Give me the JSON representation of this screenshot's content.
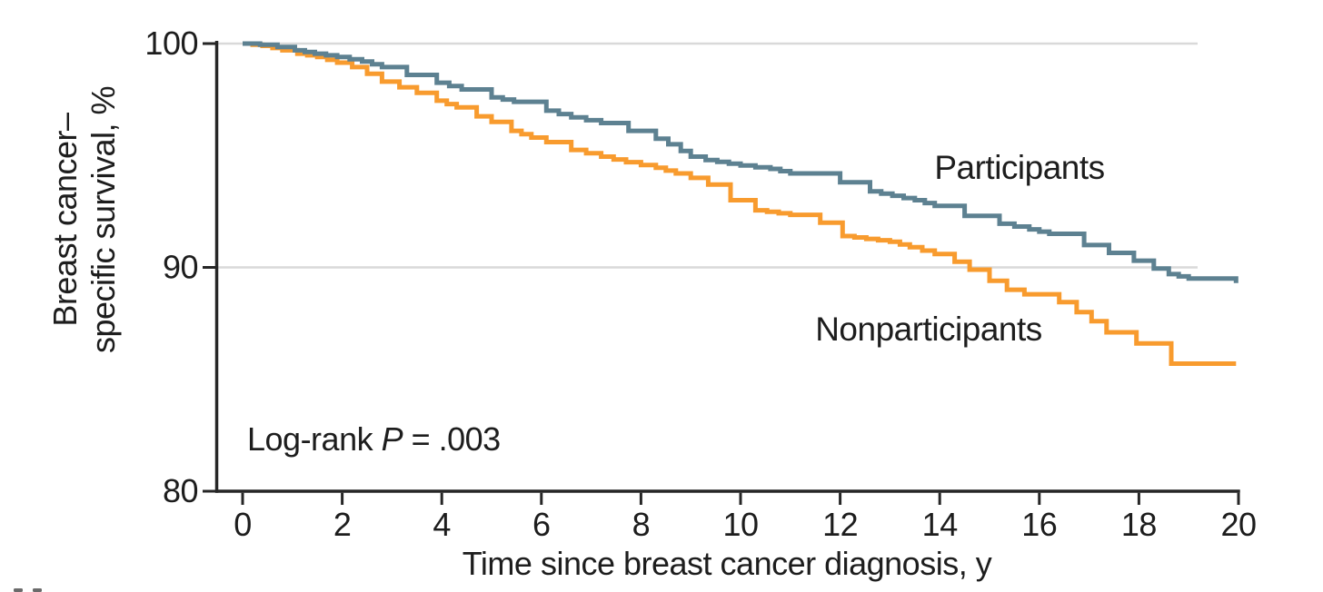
{
  "figure": {
    "background": "#ffffff",
    "y_axis": {
      "label_line1": "Breast cancer–",
      "label_line2": "specific survival, %",
      "ticks": [
        100,
        90,
        80
      ],
      "min": 80,
      "max": 100
    },
    "x_axis": {
      "label": "Time since breast cancer diagnosis, y",
      "ticks": [
        0,
        2,
        4,
        6,
        8,
        10,
        12,
        14,
        16,
        18,
        20
      ],
      "min": 0,
      "max": 20
    },
    "annotation": {
      "prefix": "Log-rank ",
      "stat_symbol": "P",
      "value_text": " = .003"
    }
  },
  "colors": {
    "participants": "#5d8191",
    "nonparticipants": "#f89b2e",
    "grid": "#d9d9d9",
    "axis": "#262626",
    "text": "#1d1d1d"
  },
  "chart_data": {
    "type": "line",
    "subtype": "kaplan-meier-step",
    "title": "",
    "xlabel": "Time since breast cancer diagnosis, y",
    "ylabel": "Breast cancer–specific survival, %",
    "xlim": [
      0,
      20
    ],
    "ylim": [
      80,
      100
    ],
    "x_ticks": [
      0,
      2,
      4,
      6,
      8,
      10,
      12,
      14,
      16,
      18,
      20
    ],
    "y_ticks": [
      100,
      90,
      80
    ],
    "grid": "horizontal gridlines at y=90 and y=100",
    "legend_position": "inline curve labels",
    "p_value_label": "Log-rank P = .003",
    "series": [
      {
        "name": "Nonparticipants",
        "color": "#f89b2e",
        "points": [
          [
            0,
            100
          ],
          [
            0.4,
            99.9
          ],
          [
            0.8,
            99.7
          ],
          [
            1.1,
            99.55
          ],
          [
            1.5,
            99.4
          ],
          [
            1.9,
            99.15
          ],
          [
            2.2,
            98.95
          ],
          [
            2.5,
            98.65
          ],
          [
            2.8,
            98.3
          ],
          [
            3.15,
            98.05
          ],
          [
            3.5,
            97.8
          ],
          [
            3.9,
            97.45
          ],
          [
            4.3,
            97.15
          ],
          [
            4.7,
            96.75
          ],
          [
            5.0,
            96.5
          ],
          [
            5.4,
            96.1
          ],
          [
            5.8,
            95.8
          ],
          [
            6.1,
            95.6
          ],
          [
            6.6,
            95.25
          ],
          [
            7.2,
            94.95
          ],
          [
            7.7,
            94.7
          ],
          [
            8.3,
            94.45
          ],
          [
            8.7,
            94.2
          ],
          [
            9.0,
            94.0
          ],
          [
            9.35,
            93.7
          ],
          [
            9.8,
            93.0
          ],
          [
            10.3,
            92.55
          ],
          [
            11.0,
            92.35
          ],
          [
            11.6,
            92.0
          ],
          [
            12.05,
            91.4
          ],
          [
            13.0,
            91.15
          ],
          [
            13.4,
            90.9
          ],
          [
            13.9,
            90.6
          ],
          [
            14.3,
            90.25
          ],
          [
            14.6,
            89.9
          ],
          [
            15.0,
            89.4
          ],
          [
            15.35,
            89.0
          ],
          [
            15.7,
            88.8
          ],
          [
            16.4,
            88.45
          ],
          [
            16.75,
            88.0
          ],
          [
            17.05,
            87.6
          ],
          [
            17.35,
            87.1
          ],
          [
            17.95,
            86.6
          ],
          [
            18.65,
            85.7
          ],
          [
            19.95,
            85.7
          ]
        ]
      },
      {
        "name": "Participants",
        "color": "#5d8191",
        "points": [
          [
            0,
            100
          ],
          [
            0.35,
            99.95
          ],
          [
            0.7,
            99.85
          ],
          [
            1.05,
            99.7
          ],
          [
            1.45,
            99.55
          ],
          [
            1.9,
            99.4
          ],
          [
            2.4,
            99.2
          ],
          [
            2.8,
            98.95
          ],
          [
            3.3,
            98.6
          ],
          [
            3.9,
            98.25
          ],
          [
            4.4,
            97.95
          ],
          [
            5.0,
            97.6
          ],
          [
            5.45,
            97.4
          ],
          [
            6.1,
            97.0
          ],
          [
            6.6,
            96.7
          ],
          [
            7.2,
            96.45
          ],
          [
            7.75,
            96.1
          ],
          [
            8.3,
            95.75
          ],
          [
            8.55,
            95.5
          ],
          [
            8.8,
            95.2
          ],
          [
            9.0,
            94.95
          ],
          [
            9.3,
            94.8
          ],
          [
            10.0,
            94.55
          ],
          [
            10.6,
            94.4
          ],
          [
            11.0,
            94.2
          ],
          [
            12.0,
            93.8
          ],
          [
            12.6,
            93.4
          ],
          [
            13.05,
            93.2
          ],
          [
            13.5,
            93.0
          ],
          [
            13.9,
            92.75
          ],
          [
            14.5,
            92.3
          ],
          [
            15.2,
            91.95
          ],
          [
            15.8,
            91.7
          ],
          [
            16.2,
            91.5
          ],
          [
            16.9,
            91.0
          ],
          [
            17.4,
            90.65
          ],
          [
            17.9,
            90.3
          ],
          [
            18.3,
            89.95
          ],
          [
            18.6,
            89.7
          ],
          [
            19.0,
            89.5
          ],
          [
            19.8,
            89.5
          ],
          [
            19.95,
            89.3
          ]
        ]
      }
    ]
  }
}
